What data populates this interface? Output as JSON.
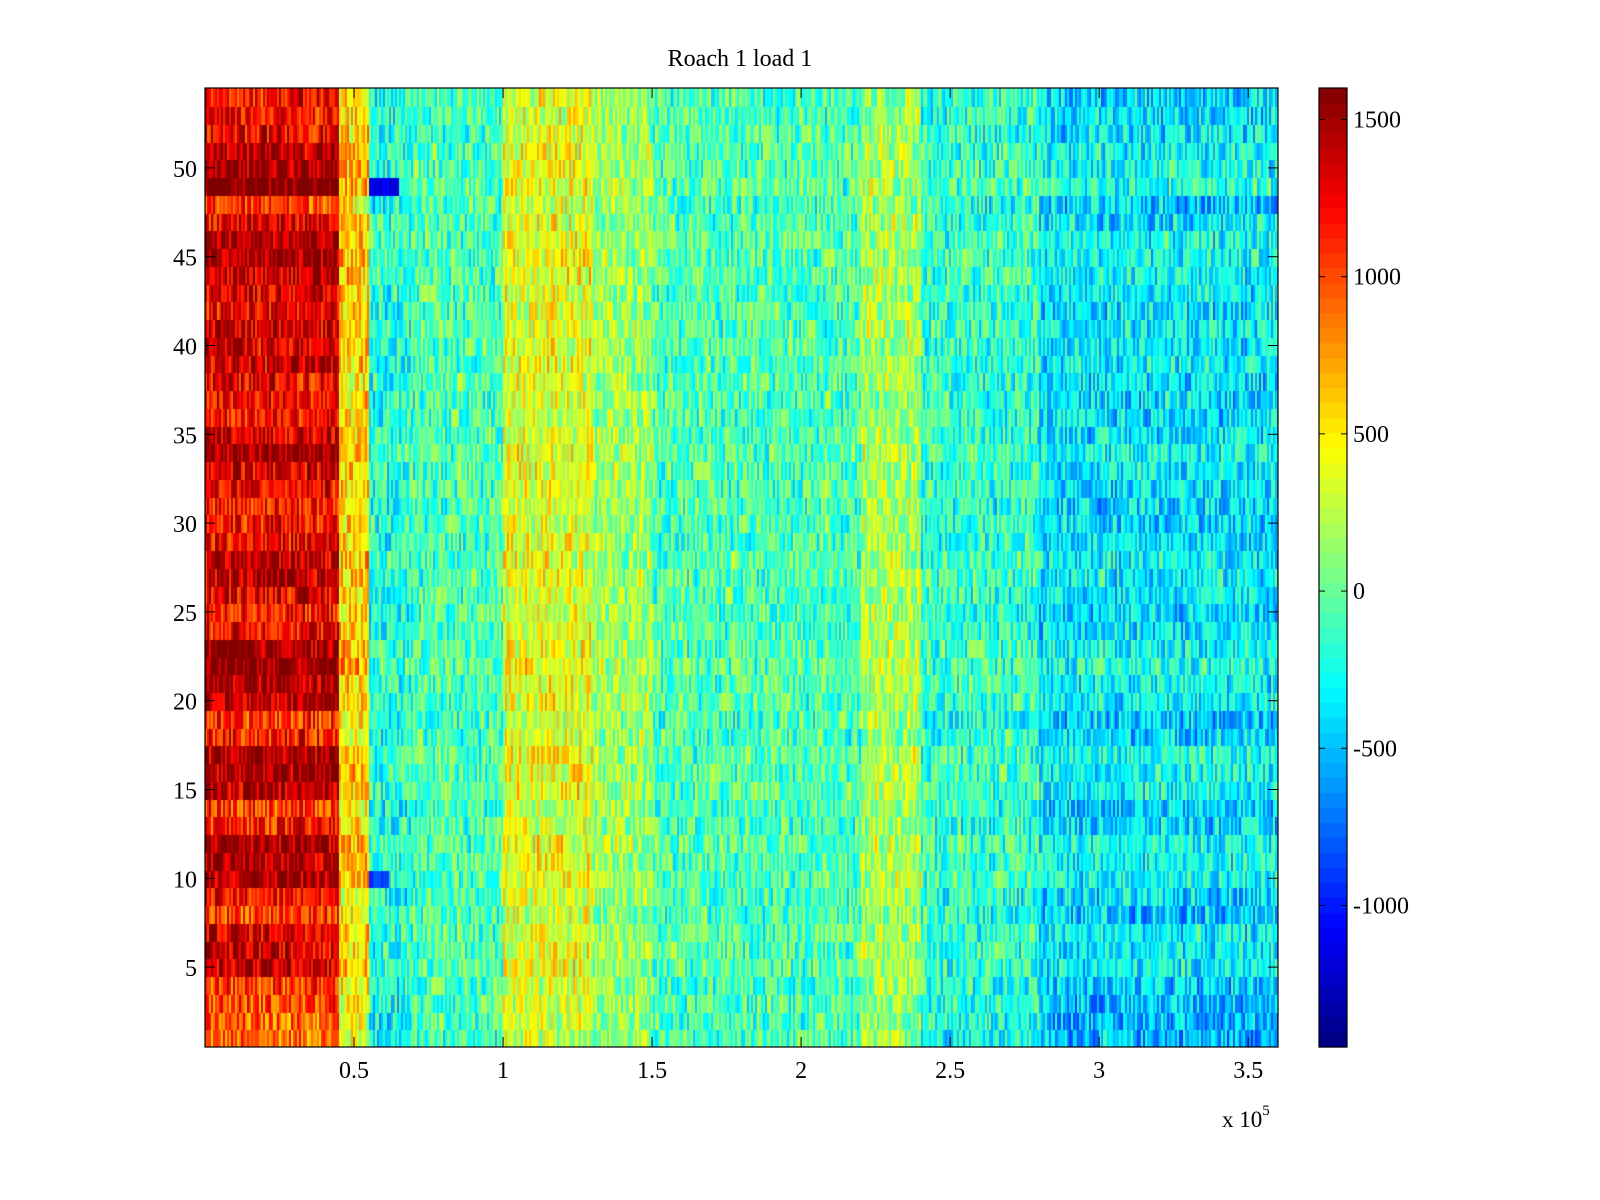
{
  "chart_data": {
    "type": "heatmap",
    "title": "Roach 1 load 1",
    "xlabel": "",
    "ylabel": "",
    "x_multiplier_label": "x 10",
    "x_multiplier_exponent": "5",
    "xlim": [
      0,
      3.6
    ],
    "ylim": [
      0.5,
      54.5
    ],
    "x_ticks": [
      0.5,
      1,
      1.5,
      2,
      2.5,
      3,
      3.5
    ],
    "x_tick_labels": [
      "0.5",
      "1",
      "1.5",
      "2",
      "2.5",
      "3",
      "3.5"
    ],
    "y_ticks": [
      5,
      10,
      15,
      20,
      25,
      30,
      35,
      40,
      45,
      50
    ],
    "y_tick_labels": [
      "5",
      "10",
      "15",
      "20",
      "25",
      "30",
      "35",
      "40",
      "45",
      "50"
    ],
    "rows": 54,
    "colormap": "jet",
    "color_range": [
      -1450,
      1600
    ],
    "colorbar_ticks": [
      1500,
      1000,
      500,
      0,
      -500,
      -1000
    ],
    "colorbar_tick_labels": [
      "1500",
      "1000",
      "500",
      "0",
      "-500",
      "-1000"
    ],
    "x_segments": [
      {
        "x_start": 0.0,
        "x_end": 0.45,
        "mean": 1050
      },
      {
        "x_start": 0.45,
        "x_end": 0.55,
        "mean": 450
      },
      {
        "x_start": 0.55,
        "x_end": 0.7,
        "mean": -250
      },
      {
        "x_start": 0.7,
        "x_end": 1.0,
        "mean": -100
      },
      {
        "x_start": 1.0,
        "x_end": 1.3,
        "mean": 300
      },
      {
        "x_start": 1.3,
        "x_end": 1.5,
        "mean": 120
      },
      {
        "x_start": 1.5,
        "x_end": 2.2,
        "mean": -100
      },
      {
        "x_start": 2.2,
        "x_end": 2.4,
        "mean": 150
      },
      {
        "x_start": 2.4,
        "x_end": 2.8,
        "mean": -200
      },
      {
        "x_start": 2.8,
        "x_end": 3.6,
        "mean": -450
      }
    ],
    "row_strength": [
      0.85,
      0.85,
      0.95,
      1.0,
      1.35,
      1.3,
      1.3,
      1.0,
      1.1,
      1.45,
      1.4,
      1.45,
      1.1,
      1.0,
      1.4,
      1.45,
      1.45,
      1.1,
      1.0,
      1.35,
      1.4,
      1.55,
      1.45,
      1.2,
      1.1,
      1.25,
      1.35,
      1.35,
      1.2,
      1.15,
      1.1,
      1.2,
      1.3,
      1.45,
      1.25,
      1.15,
      1.15,
      1.2,
      1.3,
      1.3,
      1.3,
      1.2,
      1.25,
      1.35,
      1.45,
      1.45,
      1.25,
      1.0,
      1.6,
      1.45,
      1.4,
      1.2,
      1.15,
      1.15
    ],
    "noise_amplitude": 450,
    "annotations": [
      {
        "label": "dark blue patch",
        "x_start": 0.55,
        "x_end": 0.65,
        "row": 49,
        "value": -1150
      },
      {
        "label": "blue patch",
        "x_start": 0.55,
        "x_end": 0.62,
        "row": 10,
        "value": -900
      }
    ]
  }
}
